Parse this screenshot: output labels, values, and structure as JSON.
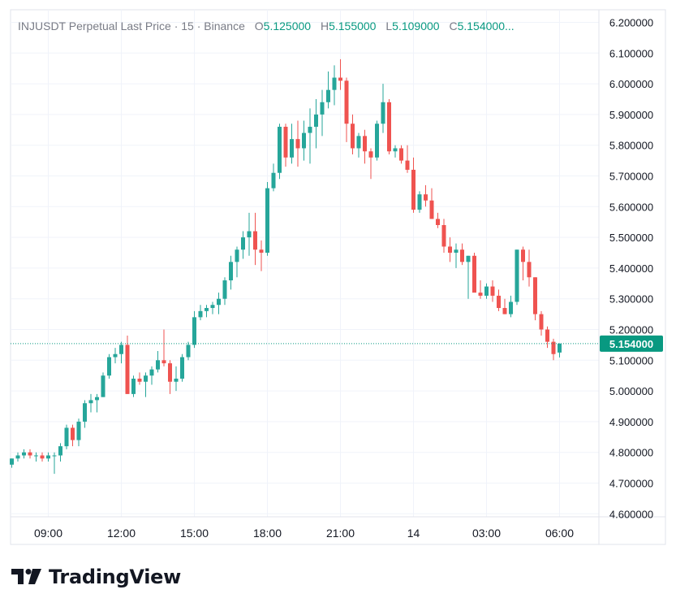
{
  "legend": {
    "title": "INJUSDT Perpetual Last Price · 15 · Binance",
    "o_key": "O",
    "o_val": "5.125000",
    "h_key": "H",
    "h_val": "5.155000",
    "l_key": "L",
    "l_val": "5.109000",
    "c_key": "C",
    "c_val": "5.154000..."
  },
  "brand": {
    "name": "TradingView",
    "logo_icon": "tradingview-logo-icon"
  },
  "colors": {
    "up": "#26a69a",
    "down": "#ef5350",
    "last_price_label_bg": "#089981",
    "grid": "#f0f3fa",
    "text": "#131722"
  },
  "chart_data": {
    "type": "candlestick",
    "title": "INJUSDT Perpetual Last Price · 15 · Binance",
    "interval": "15",
    "y_axis": {
      "position": "right",
      "range": [
        4.58,
        6.22
      ],
      "ticks": [
        "6.200000",
        "6.100000",
        "6.000000",
        "5.900000",
        "5.800000",
        "5.700000",
        "5.600000",
        "5.500000",
        "5.400000",
        "5.300000",
        "5.200000",
        "5.100000",
        "5.000000",
        "4.900000",
        "4.800000",
        "4.700000",
        "4.600000"
      ]
    },
    "x_axis": {
      "ticks": [
        {
          "label": "09:00",
          "bar": 6
        },
        {
          "label": "12:00",
          "bar": 18
        },
        {
          "label": "15:00",
          "bar": 30
        },
        {
          "label": "18:00",
          "bar": 42
        },
        {
          "label": "21:00",
          "bar": 54
        },
        {
          "label": "14",
          "bar": 66
        },
        {
          "label": "03:00",
          "bar": 78
        },
        {
          "label": "06:00",
          "bar": 90
        }
      ]
    },
    "last_price": 5.154,
    "last_price_label": "5.154000",
    "grid": true,
    "candles": [
      [
        4.76,
        4.78,
        4.75,
        4.78
      ],
      [
        4.78,
        4.8,
        4.77,
        4.79
      ],
      [
        4.79,
        4.81,
        4.78,
        4.8
      ],
      [
        4.8,
        4.81,
        4.78,
        4.79
      ],
      [
        4.79,
        4.8,
        4.77,
        4.79
      ],
      [
        4.79,
        4.8,
        4.77,
        4.78
      ],
      [
        4.78,
        4.8,
        4.77,
        4.79
      ],
      [
        4.79,
        4.8,
        4.73,
        4.79
      ],
      [
        4.79,
        4.83,
        4.77,
        4.82
      ],
      [
        4.82,
        4.89,
        4.81,
        4.88
      ],
      [
        4.88,
        4.89,
        4.82,
        4.84
      ],
      [
        4.84,
        4.91,
        4.82,
        4.9
      ],
      [
        4.9,
        4.97,
        4.88,
        4.96
      ],
      [
        4.96,
        4.99,
        4.93,
        4.97
      ],
      [
        4.97,
        4.99,
        4.93,
        4.98
      ],
      [
        4.98,
        5.06,
        4.98,
        5.05
      ],
      [
        5.05,
        5.12,
        5.04,
        5.11
      ],
      [
        5.11,
        5.14,
        5.09,
        5.12
      ],
      [
        5.12,
        5.16,
        5.09,
        5.15
      ],
      [
        5.15,
        5.18,
        4.99,
        4.99
      ],
      [
        4.99,
        5.05,
        4.98,
        5.04
      ],
      [
        5.04,
        5.06,
        5.02,
        5.03
      ],
      [
        5.03,
        5.06,
        4.98,
        5.05
      ],
      [
        5.05,
        5.08,
        5.02,
        5.07
      ],
      [
        5.07,
        5.13,
        5.06,
        5.1
      ],
      [
        5.1,
        5.2,
        5.08,
        5.09
      ],
      [
        5.09,
        5.1,
        4.99,
        5.03
      ],
      [
        5.03,
        5.08,
        5.0,
        5.04
      ],
      [
        5.04,
        5.12,
        5.03,
        5.11
      ],
      [
        5.11,
        5.16,
        5.1,
        5.15
      ],
      [
        5.15,
        5.26,
        5.14,
        5.24
      ],
      [
        5.24,
        5.28,
        5.23,
        5.26
      ],
      [
        5.26,
        5.28,
        5.24,
        5.27
      ],
      [
        5.27,
        5.29,
        5.25,
        5.28
      ],
      [
        5.28,
        5.32,
        5.25,
        5.3
      ],
      [
        5.3,
        5.37,
        5.28,
        5.36
      ],
      [
        5.36,
        5.44,
        5.33,
        5.42
      ],
      [
        5.42,
        5.47,
        5.37,
        5.46
      ],
      [
        5.46,
        5.52,
        5.43,
        5.5
      ],
      [
        5.5,
        5.58,
        5.44,
        5.52
      ],
      [
        5.52,
        5.58,
        5.41,
        5.46
      ],
      [
        5.46,
        5.49,
        5.39,
        5.45
      ],
      [
        5.45,
        5.68,
        5.44,
        5.66
      ],
      [
        5.66,
        5.74,
        5.65,
        5.71
      ],
      [
        5.71,
        5.87,
        5.69,
        5.86
      ],
      [
        5.86,
        5.87,
        5.73,
        5.76
      ],
      [
        5.76,
        5.87,
        5.74,
        5.82
      ],
      [
        5.82,
        5.88,
        5.73,
        5.79
      ],
      [
        5.79,
        5.88,
        5.75,
        5.84
      ],
      [
        5.84,
        5.92,
        5.74,
        5.86
      ],
      [
        5.86,
        5.95,
        5.79,
        5.9
      ],
      [
        5.9,
        5.98,
        5.83,
        5.94
      ],
      [
        5.94,
        6.04,
        5.92,
        5.98
      ],
      [
        5.98,
        6.06,
        5.93,
        6.02
      ],
      [
        6.02,
        6.08,
        5.98,
        6.01
      ],
      [
        6.01,
        6.02,
        5.81,
        5.87
      ],
      [
        5.87,
        5.9,
        5.77,
        5.79
      ],
      [
        5.79,
        5.84,
        5.76,
        5.83
      ],
      [
        5.83,
        5.85,
        5.74,
        5.78
      ],
      [
        5.78,
        5.79,
        5.69,
        5.76
      ],
      [
        5.76,
        5.88,
        5.75,
        5.87
      ],
      [
        5.87,
        6.0,
        5.84,
        5.94
      ],
      [
        5.94,
        5.95,
        5.77,
        5.78
      ],
      [
        5.78,
        5.8,
        5.76,
        5.79
      ],
      [
        5.79,
        5.8,
        5.74,
        5.75
      ],
      [
        5.75,
        5.8,
        5.71,
        5.72
      ],
      [
        5.72,
        5.76,
        5.58,
        5.59
      ],
      [
        5.59,
        5.65,
        5.58,
        5.64
      ],
      [
        5.64,
        5.67,
        5.6,
        5.62
      ],
      [
        5.62,
        5.66,
        5.56,
        5.56
      ],
      [
        5.56,
        5.58,
        5.53,
        5.54
      ],
      [
        5.54,
        5.56,
        5.45,
        5.47
      ],
      [
        5.47,
        5.5,
        5.42,
        5.45
      ],
      [
        5.45,
        5.48,
        5.4,
        5.46
      ],
      [
        5.46,
        5.48,
        5.41,
        5.42
      ],
      [
        5.42,
        5.44,
        5.3,
        5.44
      ],
      [
        5.44,
        5.45,
        5.33,
        5.32
      ],
      [
        5.32,
        5.36,
        5.3,
        5.31
      ],
      [
        5.31,
        5.35,
        5.3,
        5.34
      ],
      [
        5.34,
        5.36,
        5.29,
        5.31
      ],
      [
        5.31,
        5.33,
        5.26,
        5.27
      ],
      [
        5.27,
        5.3,
        5.25,
        5.25
      ],
      [
        5.25,
        5.31,
        5.24,
        5.29
      ],
      [
        5.29,
        5.46,
        5.28,
        5.46
      ],
      [
        5.46,
        5.47,
        5.36,
        5.42
      ],
      [
        5.42,
        5.46,
        5.34,
        5.37
      ],
      [
        5.37,
        5.37,
        5.23,
        5.25
      ],
      [
        5.25,
        5.26,
        5.18,
        5.2
      ],
      [
        5.2,
        5.21,
        5.14,
        5.16
      ],
      [
        5.16,
        5.17,
        5.1,
        5.12
      ],
      [
        5.125,
        5.155,
        5.109,
        5.154
      ]
    ]
  }
}
